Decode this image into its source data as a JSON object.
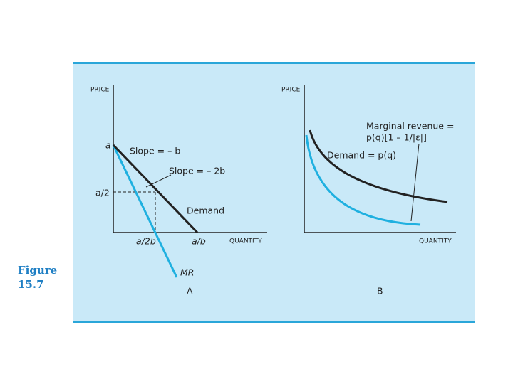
{
  "figure": {
    "label": "Figure",
    "number": "15.7"
  },
  "panel_a": {
    "y_axis": "PRICE",
    "x_axis": "QUANTITY",
    "intercept": "a",
    "slope_demand": "Slope = – b",
    "slope_mr": "Slope = – 2b",
    "half_a": "a/2",
    "demand": "Demand",
    "half_qty": "a/2b",
    "qty": "a/b",
    "mr": "MR",
    "caption": "A"
  },
  "panel_b": {
    "y_axis": "PRICE",
    "x_axis": "QUANTITY",
    "mr_line1": "Marginal revenue =",
    "mr_line2": "p(q)[1 – 1/|ε|]",
    "demand": "Demand = p(q)",
    "caption": "B"
  }
}
